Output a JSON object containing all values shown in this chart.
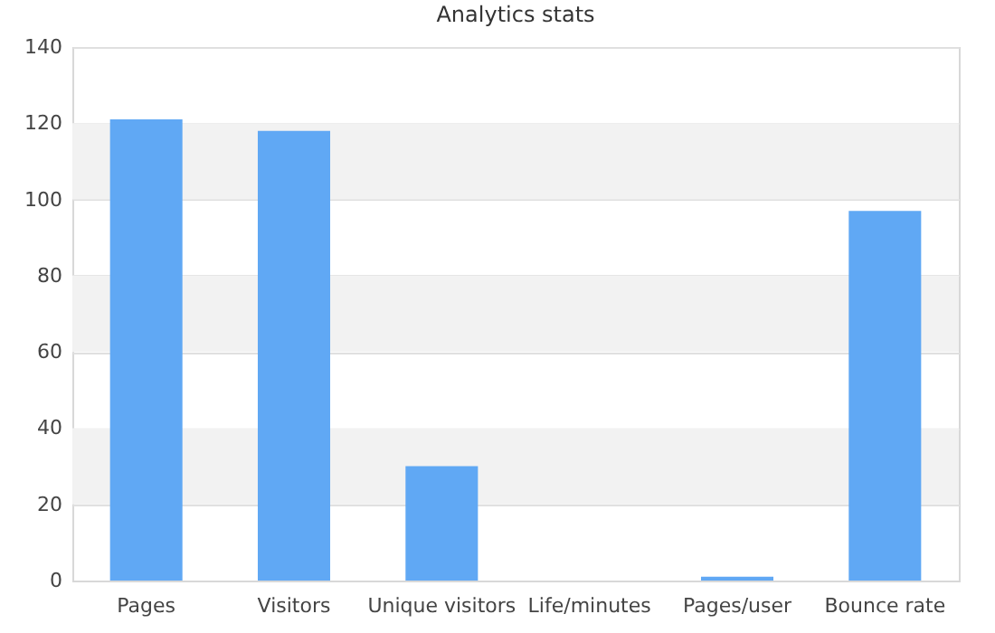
{
  "chart_data": {
    "type": "bar",
    "title": "Analytics stats",
    "categories": [
      "Pages",
      "Visitors",
      "Unique visitors",
      "Life/minutes",
      "Pages/user",
      "Bounce rate"
    ],
    "values": [
      121,
      118,
      30,
      0,
      1,
      97
    ],
    "color": "#60a8f4",
    "ylim": [
      0,
      140
    ],
    "yticks": [
      0,
      20,
      40,
      60,
      80,
      100,
      120,
      140
    ],
    "grid": "y",
    "bands": [
      {
        "axis": "y",
        "from": 20,
        "to": 40,
        "color": "#f2f2f2"
      },
      {
        "axis": "y",
        "from": 60,
        "to": 80,
        "color": "#f2f2f2"
      },
      {
        "axis": "y",
        "from": 100,
        "to": 120,
        "color": "#f2f2f2"
      }
    ]
  }
}
